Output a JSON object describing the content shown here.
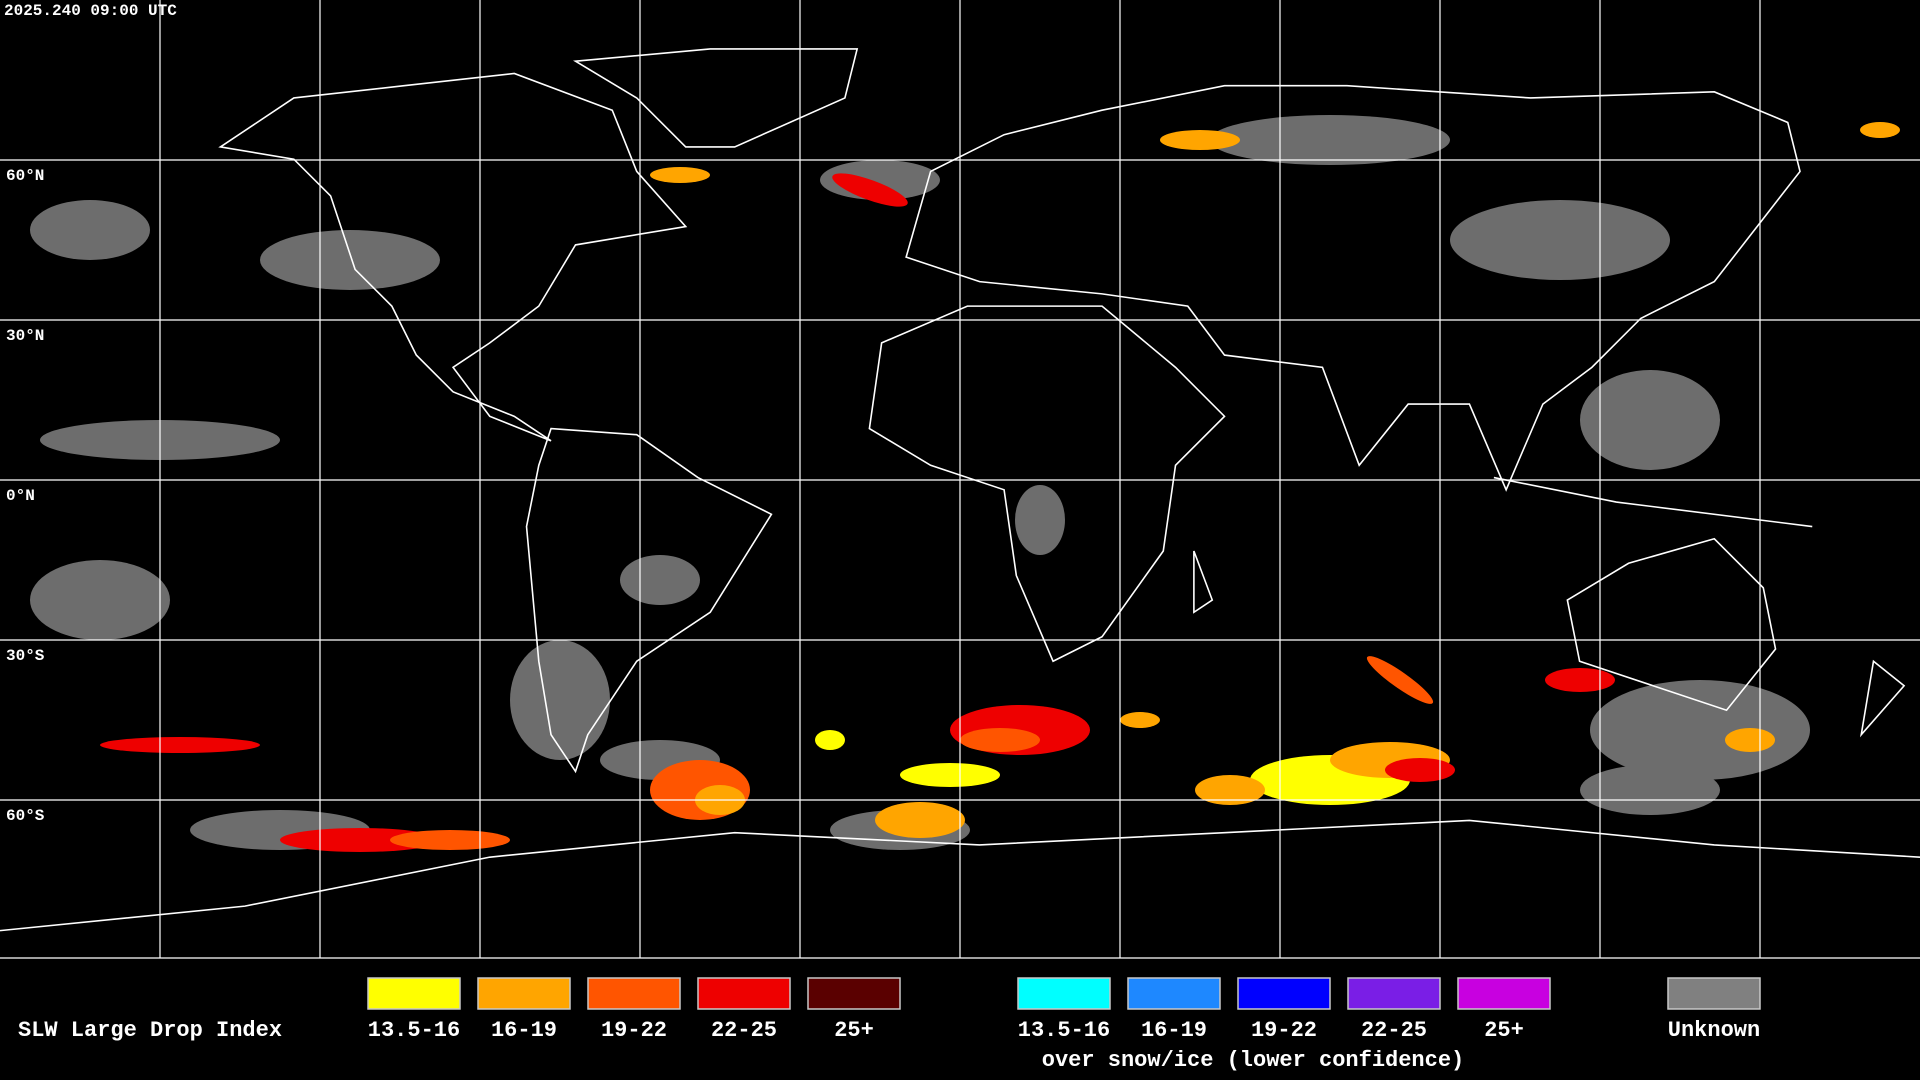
{
  "header": {
    "timestamp": "2025.240 09:00 UTC"
  },
  "map": {
    "latitude_labels": [
      "60°N",
      "30°N",
      "0°N",
      "30°S",
      "60°S"
    ]
  },
  "legend": {
    "title": "SLW Large Drop Index",
    "items": [
      {
        "label": "13.5-16",
        "color": "#ffff00"
      },
      {
        "label": "16-19",
        "color": "#ffa500"
      },
      {
        "label": "19-22",
        "color": "#ff5500"
      },
      {
        "label": "22-25",
        "color": "#ee0000"
      },
      {
        "label": "25+",
        "color": "#5a0000"
      }
    ],
    "snow_items": [
      {
        "label": "13.5-16",
        "color": "#00ffff"
      },
      {
        "label": "16-19",
        "color": "#1e88ff"
      },
      {
        "label": "19-22",
        "color": "#0000ff"
      },
      {
        "label": "22-25",
        "color": "#7a1ee6"
      },
      {
        "label": "25+",
        "color": "#c800e0"
      }
    ],
    "snow_caption": "over snow/ice (lower confidence)",
    "unknown": {
      "label": "Unknown",
      "color": "#808080"
    }
  }
}
